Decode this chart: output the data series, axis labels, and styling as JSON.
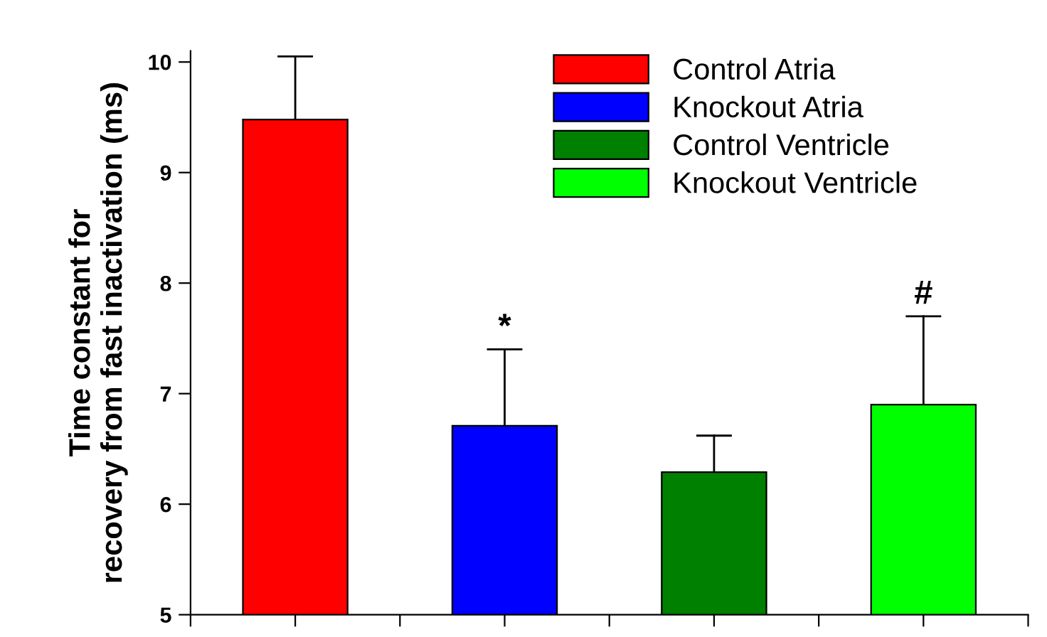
{
  "chart_data": {
    "type": "bar",
    "ylabel": "Time constant for\nrecovery from fast inactivation (ms)",
    "categories": [
      null,
      null,
      null,
      null
    ],
    "series": [
      {
        "name": "Control Atria",
        "color": "#ff0000",
        "values": [
          9.48,
          null,
          null,
          null
        ],
        "errors": [
          [
            9.48,
            10.05
          ],
          null,
          null,
          null
        ]
      },
      {
        "name": "Knockout Atria",
        "color": "#0000ff",
        "values": [
          null,
          6.71,
          null,
          null
        ],
        "errors": [
          null,
          [
            6.71,
            7.4
          ],
          null,
          null
        ],
        "value_labels": [
          null,
          "*",
          null,
          null
        ]
      },
      {
        "name": "Control Ventricle",
        "color": "#008000",
        "values": [
          null,
          null,
          6.29,
          null
        ],
        "errors": [
          null,
          null,
          [
            6.29,
            6.62
          ],
          null
        ]
      },
      {
        "name": "Knockout Ventricle",
        "color": "#00ff00",
        "values": [
          null,
          null,
          null,
          6.9
        ],
        "errors": [
          null,
          null,
          null,
          [
            6.9,
            7.7
          ]
        ],
        "value_labels": [
          null,
          null,
          null,
          "#"
        ]
      }
    ],
    "ylim": [
      5,
      10.1
    ],
    "yticks": [
      5,
      6,
      7,
      8,
      9,
      10
    ],
    "grid": false,
    "legend": "top right"
  }
}
